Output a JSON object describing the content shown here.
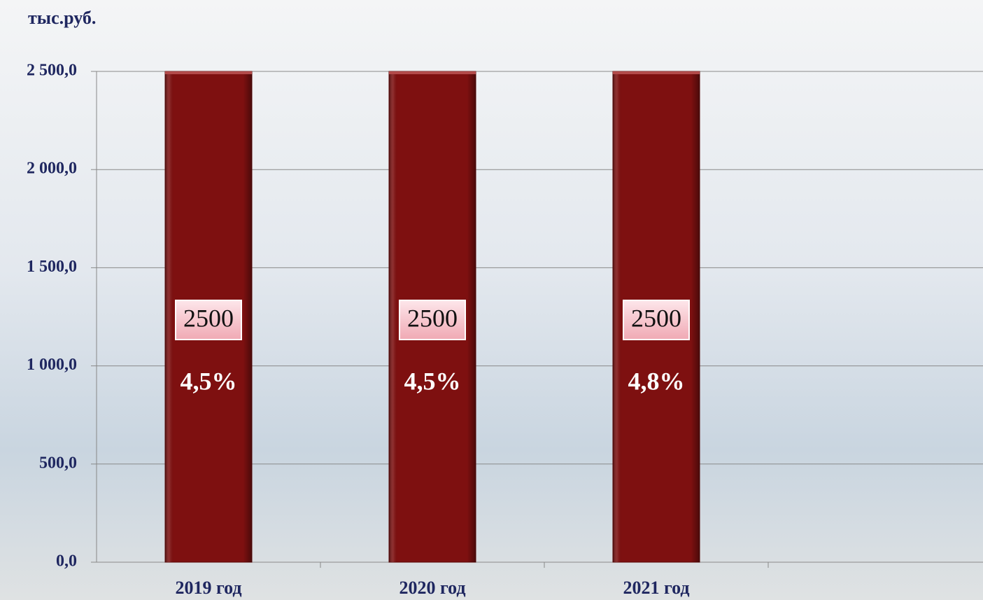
{
  "chart_data": {
    "type": "bar",
    "y_axis_label": "тыс.руб.",
    "categories": [
      "2019 год",
      "2020 год",
      "2021 год",
      null
    ],
    "values": [
      2500,
      2500,
      2500,
      null
    ],
    "percent_labels": [
      "4,5%",
      "4,5%",
      "4,8%",
      null
    ],
    "color": "#7e1010",
    "ylim": [
      0,
      2500
    ],
    "yticks": [
      {
        "value": 0,
        "label": "0,0"
      },
      {
        "value": 500,
        "label": "500,0"
      },
      {
        "value": 1000,
        "label": "1 000,0"
      },
      {
        "value": 1500,
        "label": "1 500,0"
      },
      {
        "value": 2000,
        "label": "2 000,0"
      },
      {
        "value": 2500,
        "label": "2 500,0"
      }
    ],
    "grid": true
  }
}
